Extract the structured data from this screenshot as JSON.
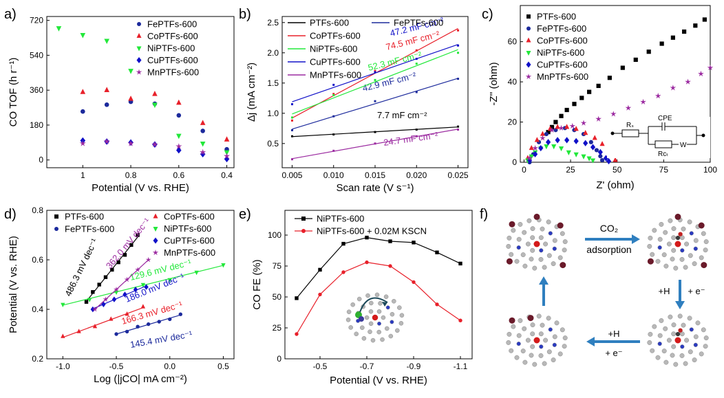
{
  "colors": {
    "black": "#000000",
    "red": "#e8202a",
    "green": "#22e83a",
    "navy": "#1c2a9c",
    "blue": "#1010c8",
    "purple": "#9b2aa0"
  },
  "chart_data": [
    {
      "panel": "a)",
      "type": "scatter",
      "xlabel": "Potential (V vs. RHE)",
      "ylabel": "CO TOF (h r⁻¹)",
      "xlim": [
        1.15,
        0.37
      ],
      "ylim": [
        -40,
        740
      ],
      "xticks": [
        1.0,
        0.8,
        0.6,
        0.4
      ],
      "yticks": [
        0,
        180,
        360,
        540,
        720
      ],
      "legend": "top-right",
      "series": [
        {
          "name": "FePTFs-600",
          "color": "navy",
          "marker": "circle",
          "x": [
            1.0,
            0.9,
            0.8,
            0.7,
            0.6,
            0.5,
            0.4
          ],
          "y": [
            250,
            285,
            300,
            290,
            230,
            150,
            55
          ]
        },
        {
          "name": "CoPTFs-600",
          "color": "red",
          "marker": "triangle-up",
          "x": [
            1.0,
            0.9,
            0.8,
            0.7,
            0.6,
            0.5,
            0.4
          ],
          "y": [
            350,
            360,
            315,
            340,
            295,
            190,
            105
          ]
        },
        {
          "name": "NiPTFs-600",
          "color": "green",
          "marker": "triangle-down",
          "x": [
            1.1,
            1.0,
            0.9,
            0.8,
            0.7,
            0.6,
            0.5,
            0.4
          ],
          "y": [
            680,
            645,
            615,
            460,
            285,
            125,
            85,
            40
          ]
        },
        {
          "name": "CuPTFs-600",
          "color": "blue",
          "marker": "diamond",
          "x": [
            1.0,
            0.9,
            0.8,
            0.7,
            0.6,
            0.5,
            0.4
          ],
          "y": [
            100,
            95,
            90,
            80,
            50,
            30,
            5
          ]
        },
        {
          "name": "MnPTFs-600",
          "color": "purple",
          "marker": "star",
          "x": [
            1.0,
            0.9,
            0.8,
            0.7,
            0.6,
            0.5,
            0.4
          ],
          "y": [
            85,
            95,
            85,
            80,
            70,
            40,
            20
          ]
        }
      ]
    },
    {
      "panel": "b)",
      "type": "scatter",
      "xlabel": "Scan rate (V s⁻¹)",
      "ylabel": "Δj (mA cm⁻²)",
      "xlim": [
        0.0038,
        0.0262
      ],
      "ylim": [
        0.1,
        2.6
      ],
      "xticks": [
        "0.005",
        "0.010",
        "0.015",
        "0.020",
        "0.025"
      ],
      "yticks": [
        "0.5",
        "1.0",
        "1.5",
        "2.0",
        "2.5"
      ],
      "legend": "top-left",
      "series": [
        {
          "name": "PTFs-600",
          "color": "black",
          "x": [
            0.005,
            0.01,
            0.015,
            0.02,
            0.025
          ],
          "y": [
            0.62,
            0.65,
            0.69,
            0.73,
            0.78
          ],
          "slope_label": "7.7 mF cm⁻²"
        },
        {
          "name": "FePTFs-600",
          "color": "navy",
          "x": [
            0.005,
            0.01,
            0.015,
            0.02,
            0.025
          ],
          "y": [
            0.72,
            0.95,
            1.2,
            1.35,
            1.57
          ],
          "slope_label": "42.9 mF cm⁻²"
        },
        {
          "name": "CoPTFs-600",
          "color": "red",
          "x": [
            0.005,
            0.01,
            0.015,
            0.02,
            0.025
          ],
          "y": [
            0.88,
            1.32,
            1.7,
            2.04,
            2.37
          ],
          "slope_label": "74.5 mF cm⁻²"
        },
        {
          "name": "NiPTFs-600",
          "color": "green",
          "x": [
            0.005,
            0.01,
            0.015,
            0.02,
            0.025
          ],
          "y": [
            0.93,
            1.3,
            1.55,
            1.82,
            2.0
          ],
          "slope_label": "52.3 mF cm⁻²"
        },
        {
          "name": "CuPTFs-600",
          "color": "blue",
          "x": [
            0.005,
            0.01,
            0.015,
            0.02,
            0.025
          ],
          "y": [
            1.15,
            1.47,
            1.68,
            1.9,
            2.12
          ],
          "slope_label": "47.2 mF cm⁻²"
        },
        {
          "name": "MnPTFs-600",
          "color": "purple",
          "x": [
            0.005,
            0.01,
            0.015,
            0.02,
            0.025
          ],
          "y": [
            0.24,
            0.38,
            0.5,
            0.62,
            0.73
          ],
          "slope_label": "24.7 mF cm⁻²"
        }
      ]
    },
    {
      "panel": "c)",
      "type": "scatter",
      "xlabel": "Z' (ohm)",
      "ylabel": "-Z'' (ohm)",
      "xlim": [
        -2,
        100
      ],
      "ylim": [
        0,
        78
      ],
      "xticks": [
        0,
        25,
        50,
        75,
        100
      ],
      "yticks": [
        0,
        20,
        40,
        60
      ],
      "legend": "top-left",
      "series": [
        {
          "name": "PTFs-600",
          "color": "black",
          "marker": "square",
          "x": [
            13,
            15,
            17,
            20,
            23,
            27,
            31,
            35,
            40,
            46,
            53,
            60,
            67,
            74,
            80,
            86,
            92,
            97
          ],
          "y": [
            15,
            17.5,
            20,
            23,
            26,
            29,
            32,
            35,
            38,
            42,
            47,
            51,
            55,
            59,
            62,
            65,
            68,
            71
          ]
        },
        {
          "name": "FePTFs-600",
          "color": "navy",
          "marker": "circle",
          "x": [
            3,
            5,
            8,
            12,
            17,
            22,
            27,
            32,
            36,
            39,
            41,
            42
          ],
          "y": [
            0,
            4,
            10,
            14,
            16,
            17,
            16,
            14,
            10,
            6,
            3,
            1
          ]
        },
        {
          "name": "CoPTFs-600",
          "color": "red",
          "marker": "triangle-up",
          "x": [
            2,
            4,
            7,
            10,
            14,
            18,
            23,
            28,
            33,
            38,
            42,
            46,
            49
          ],
          "y": [
            2,
            7,
            11,
            14,
            16.5,
            17.5,
            17.5,
            16.5,
            14.5,
            12,
            9,
            5,
            1
          ]
        },
        {
          "name": "NiPTFs-600",
          "color": "green",
          "marker": "triangle-down",
          "x": [
            2,
            4,
            6,
            9,
            12,
            16,
            20,
            24,
            28,
            32,
            35,
            37
          ],
          "y": [
            1,
            3,
            5,
            7,
            8,
            8,
            7,
            5,
            4,
            3,
            2,
            1
          ]
        },
        {
          "name": "CuPTFs-600",
          "color": "blue",
          "marker": "diamond",
          "x": [
            3,
            6,
            9,
            13,
            18,
            23,
            28,
            33,
            37,
            41,
            44,
            45.5
          ],
          "y": [
            1,
            4,
            7,
            10,
            11,
            11,
            10.5,
            9.5,
            7.5,
            5,
            2,
            0.5
          ]
        },
        {
          "name": "MnPTFs-600",
          "color": "purple",
          "marker": "star",
          "x": [
            3,
            6,
            10,
            15,
            20,
            26,
            32,
            40,
            48,
            56,
            64,
            72,
            80,
            88,
            95,
            100
          ],
          "y": [
            2,
            7,
            12,
            16,
            17,
            18,
            19.5,
            21.5,
            24,
            27,
            30,
            33,
            37,
            40,
            44,
            47
          ]
        }
      ],
      "circuit": {
        "labels": [
          "Rₛ",
          "CPE",
          "Rᴄₜ",
          "W"
        ]
      }
    },
    {
      "panel": "d)",
      "type": "scatter",
      "xlabel": "Log (|jCO| mA cm⁻²)",
      "ylabel": "Potential (V vs. RHE)",
      "xlim": [
        -1.15,
        0.6
      ],
      "ylim": [
        0.2,
        0.8
      ],
      "xticks": [
        "-1.0",
        "-0.5",
        "0.0",
        "0.5"
      ],
      "yticks": [
        "0.2",
        "0.4",
        "0.6",
        "0.8"
      ],
      "legend": "top",
      "series": [
        {
          "name": "PTFs-600",
          "color": "black",
          "marker": "square",
          "x": [
            -0.78,
            -0.72,
            -0.66,
            -0.6,
            -0.54,
            -0.48,
            -0.42,
            -0.36,
            -0.3
          ],
          "y": [
            0.43,
            0.47,
            0.5,
            0.53,
            0.56,
            0.59,
            0.62,
            0.66,
            0.7
          ],
          "slope_label": "486.3 mV dec⁻¹"
        },
        {
          "name": "FePTFs-600",
          "color": "navy",
          "marker": "circle",
          "x": [
            -0.5,
            -0.4,
            -0.3,
            -0.2,
            -0.1,
            0.0,
            0.1
          ],
          "y": [
            0.3,
            0.31,
            0.33,
            0.34,
            0.35,
            0.36,
            0.38
          ],
          "slope_label": "145.4 mV dec⁻¹"
        },
        {
          "name": "CoPTFs-600",
          "color": "red",
          "marker": "triangle-up",
          "x": [
            -1.0,
            -0.85,
            -0.7,
            -0.55,
            -0.4,
            -0.25
          ],
          "y": [
            0.29,
            0.31,
            0.33,
            0.36,
            0.38,
            0.41
          ],
          "slope_label": "166.3 mV dec⁻¹"
        },
        {
          "name": "NiPTFs-600",
          "color": "green",
          "marker": "triangle-down",
          "x": [
            -1.0,
            -0.75,
            -0.5,
            -0.25,
            0.0,
            0.25,
            0.5
          ],
          "y": [
            0.42,
            0.44,
            0.47,
            0.5,
            0.52,
            0.55,
            0.58
          ],
          "slope_label": "129.6 mV dec⁻¹"
        },
        {
          "name": "CuPTFs-600",
          "color": "blue",
          "marker": "diamond",
          "x": [
            -0.72,
            -0.62,
            -0.52,
            -0.42,
            -0.32,
            -0.22
          ],
          "y": [
            0.4,
            0.42,
            0.44,
            0.46,
            0.48,
            0.49
          ],
          "slope_label": "186.0 mV dec⁻¹"
        },
        {
          "name": "MnPTFs-600",
          "color": "purple",
          "marker": "star",
          "x": [
            -0.7,
            -0.6,
            -0.5,
            -0.4,
            -0.3,
            -0.2
          ],
          "y": [
            0.4,
            0.44,
            0.48,
            0.52,
            0.56,
            0.6
          ],
          "slope_label": "362.0 mV dec⁻¹"
        }
      ]
    },
    {
      "panel": "e)",
      "type": "line",
      "xlabel": "Potential (V vs. RHE)",
      "ylabel": "CO FE (%)",
      "xlim": [
        -0.35,
        -1.15
      ],
      "ylim": [
        0,
        120
      ],
      "xticks": [
        "-0.5",
        "-0.7",
        "-0.9",
        "-1.1"
      ],
      "yticks": [
        "0",
        "25",
        "50",
        "75",
        "100"
      ],
      "legend": "top-left",
      "series": [
        {
          "name": "NiPTFs-600",
          "color": "black",
          "marker": "square",
          "x": [
            -0.4,
            -0.5,
            -0.6,
            -0.7,
            -0.8,
            -0.9,
            -1.0,
            -1.1
          ],
          "y": [
            49,
            72,
            93,
            98,
            95,
            94,
            86,
            77
          ]
        },
        {
          "name": "NiPTFs-600 + 0.02M KSCN",
          "color": "red",
          "marker": "circle",
          "x": [
            -0.4,
            -0.5,
            -0.6,
            -0.7,
            -0.8,
            -0.9,
            -1.0,
            -1.1
          ],
          "y": [
            20,
            52,
            70,
            78,
            75,
            62,
            44,
            31
          ]
        }
      ]
    }
  ],
  "scheme": {
    "panel": "f)",
    "step1_top": "CO₂",
    "step1_bottom": "adsorption",
    "step2_top": "+H",
    "step2_bottom": "+ e⁻",
    "step3_top": "+H",
    "step3_bottom": "+ e⁻"
  }
}
